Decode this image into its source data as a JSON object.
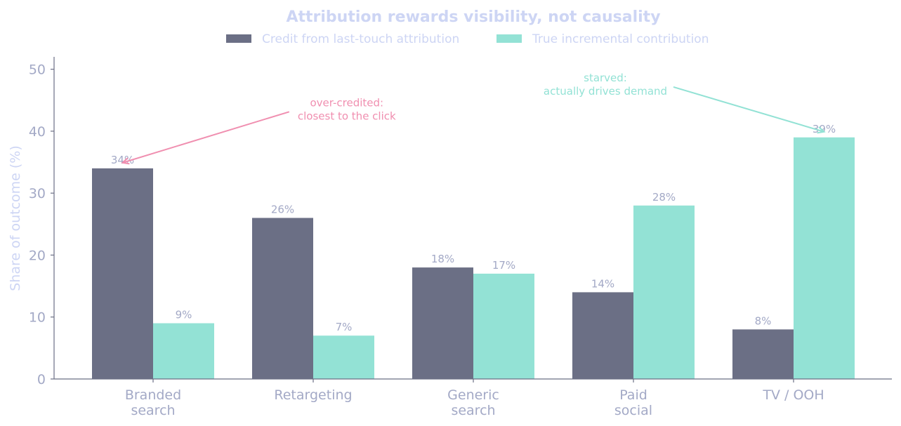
{
  "colors": {
    "background": "#ffffff",
    "last_touch": "#6b6f85",
    "incremental": "#93e2d5",
    "axis": "#6b6f85",
    "tick_text": "#a3a9c6",
    "title_text": "#cdd5f4",
    "annotation_over": "#f08fb0",
    "annotation_starved": "#93e2d5"
  },
  "chart_data": {
    "type": "bar",
    "title": "Attribution rewards visibility, not causality",
    "xlabel": "",
    "ylabel": "Share of outcome (%)",
    "ylim": [
      0,
      52
    ],
    "yticks": [
      0,
      10,
      20,
      30,
      40,
      50
    ],
    "grid": false,
    "legend_position": "top-center",
    "categories": [
      [
        "Branded",
        "search"
      ],
      [
        "Retargeting"
      ],
      [
        "Generic",
        "search"
      ],
      [
        "Paid",
        "social"
      ],
      [
        "TV / OOH"
      ]
    ],
    "series": [
      {
        "name": "Credit from last-touch attribution",
        "values": [
          34,
          26,
          18,
          14,
          8
        ],
        "labels": [
          "34%",
          "26%",
          "18%",
          "14%",
          "8%"
        ]
      },
      {
        "name": "True incremental contribution",
        "values": [
          9,
          7,
          17,
          28,
          39
        ],
        "labels": [
          "9%",
          "7%",
          "17%",
          "28%",
          "39%"
        ]
      }
    ],
    "annotations": [
      {
        "lines": [
          "over-credited:",
          "closest to the click"
        ],
        "target_category": 0,
        "target_series": 0,
        "target_value": 34,
        "text_value": 42,
        "text_category_offset": 1.1
      },
      {
        "lines": [
          "starved:",
          "actually drives demand"
        ],
        "target_category": 4,
        "target_series": 1,
        "target_value": 39,
        "text_value": 46,
        "text_category_offset": -1.0
      }
    ]
  }
}
